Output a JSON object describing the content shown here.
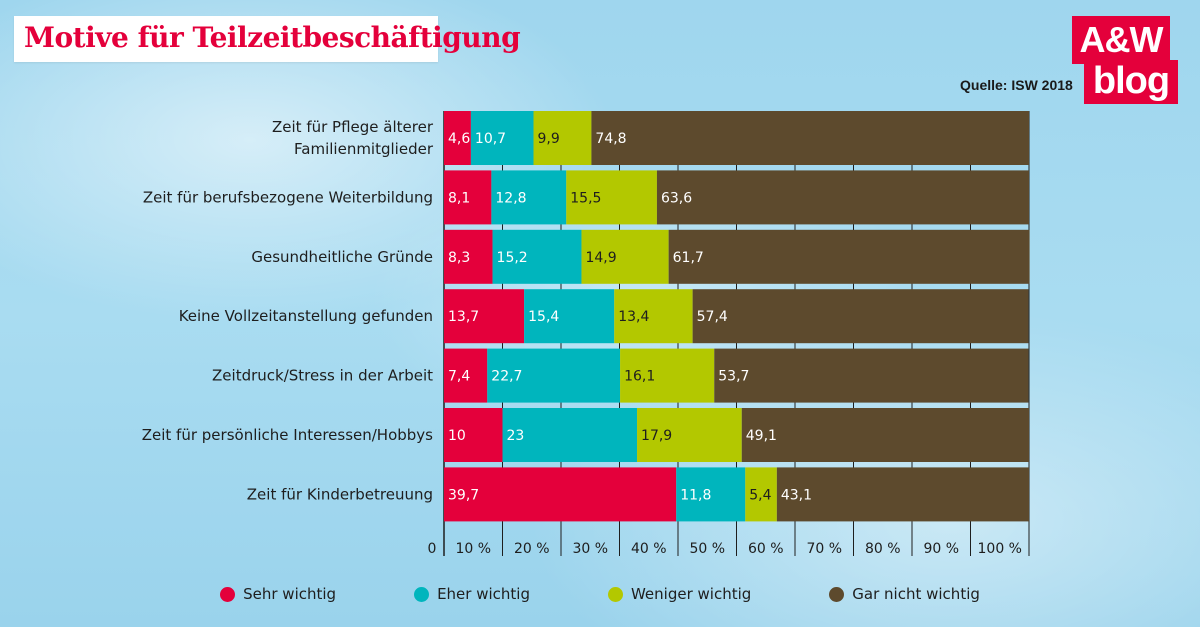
{
  "title": "Motive für Teilzeitbeschäftigung",
  "source": "Quelle: ISW 2018",
  "logo": {
    "top": "A&W",
    "bottom": "blog"
  },
  "colors": {
    "sehr": "#e4003b",
    "eher": "#00b5bd",
    "weniger": "#b3c800",
    "gar": "#5d4a2d",
    "grid": "#1e1e1e",
    "title": "#e4003b"
  },
  "chart_data": {
    "type": "bar",
    "orientation": "horizontal",
    "stacked": true,
    "title": "Motive für Teilzeitbeschäftigung",
    "xlim": [
      0,
      100
    ],
    "xticks": [
      "0",
      "10 %",
      "20 %",
      "30 %",
      "40 %",
      "50 %",
      "60 %",
      "70 %",
      "80 %",
      "90 %",
      "100 %"
    ],
    "legend_position": "bottom",
    "categories": [
      [
        "Zeit für Pflege älterer",
        "Familienmitglieder"
      ],
      [
        "Zeit für berufsbezogene Weiterbildung"
      ],
      [
        "Gesundheitliche Gründe"
      ],
      [
        "Keine Vollzeitanstellung gefunden"
      ],
      [
        "Zeitdruck/Stress in der Arbeit"
      ],
      [
        "Zeit für persönliche Interessen/Hobbys"
      ],
      [
        "Zeit für Kinderbetreuung"
      ]
    ],
    "series": [
      {
        "name": "Sehr wichtig",
        "color_key": "sehr",
        "text_color": "#ffffff",
        "values": [
          4.6,
          8.1,
          8.3,
          13.7,
          7.4,
          10,
          39.7
        ],
        "labels": [
          "4,6",
          "8,1",
          "8,3",
          "13,7",
          "7,4",
          "10",
          "39,7"
        ]
      },
      {
        "name": "Eher wichtig",
        "color_key": "eher",
        "text_color": "#ffffff",
        "values": [
          10.7,
          12.8,
          15.2,
          15.4,
          22.7,
          23,
          11.8
        ],
        "labels": [
          "10,7",
          "12,8",
          "15,2",
          "15,4",
          "22,7",
          "23",
          "11,8"
        ]
      },
      {
        "name": "Weniger wichtig",
        "color_key": "weniger",
        "text_color": "#1e1e1e",
        "values": [
          9.9,
          15.5,
          14.9,
          13.4,
          16.1,
          17.9,
          5.4
        ],
        "labels": [
          "9,9",
          "15,5",
          "14,9",
          "13,4",
          "16,1",
          "17,9",
          "5,4"
        ]
      },
      {
        "name": "Gar nicht wichtig",
        "color_key": "gar",
        "text_color": "#ffffff",
        "values": [
          74.8,
          63.6,
          61.7,
          57.4,
          53.7,
          49.1,
          43.1
        ],
        "labels": [
          "74,8",
          "63,6",
          "61,7",
          "57,4",
          "53,7",
          "49,1",
          "43,1"
        ]
      }
    ]
  }
}
